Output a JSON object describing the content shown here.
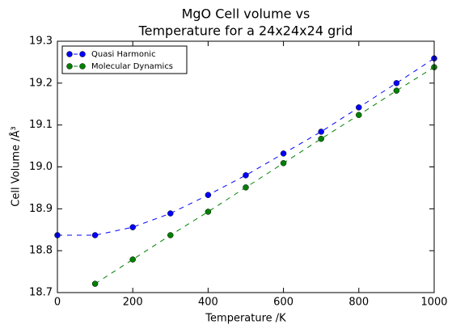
{
  "chart_data": {
    "type": "line",
    "title": [
      "MgO Cell volume vs",
      "Temperature for a 24x24x24 grid"
    ],
    "x_label": "Temperature /K",
    "y_label": "Cell Volume /Å³",
    "x": [
      0,
      100,
      200,
      300,
      400,
      500,
      600,
      700,
      800,
      900,
      1000
    ],
    "series": [
      {
        "name": "Quasi Harmonic",
        "color": "#0000ff",
        "values": [
          18.837,
          18.837,
          18.856,
          18.889,
          18.933,
          18.98,
          19.032,
          19.084,
          19.142,
          19.2,
          19.259
        ]
      },
      {
        "name": "Molecular Dynamics",
        "color": "#008000",
        "values": [
          null,
          18.721,
          18.779,
          18.837,
          18.893,
          18.951,
          19.009,
          19.067,
          19.124,
          19.182,
          19.238
        ]
      }
    ],
    "xlim": [
      0,
      1000
    ],
    "xticks": [
      0,
      200,
      400,
      600,
      800,
      1000
    ],
    "ylim": [
      18.7,
      19.3
    ],
    "yticks": [
      18.7,
      18.8,
      18.9,
      {
        "value": 19,
        "label": "19.0"
      },
      19.1,
      19.2,
      19.3
    ],
    "line_style": "dashed",
    "marker": "circle",
    "legend": "upper-left",
    "grid": false
  }
}
